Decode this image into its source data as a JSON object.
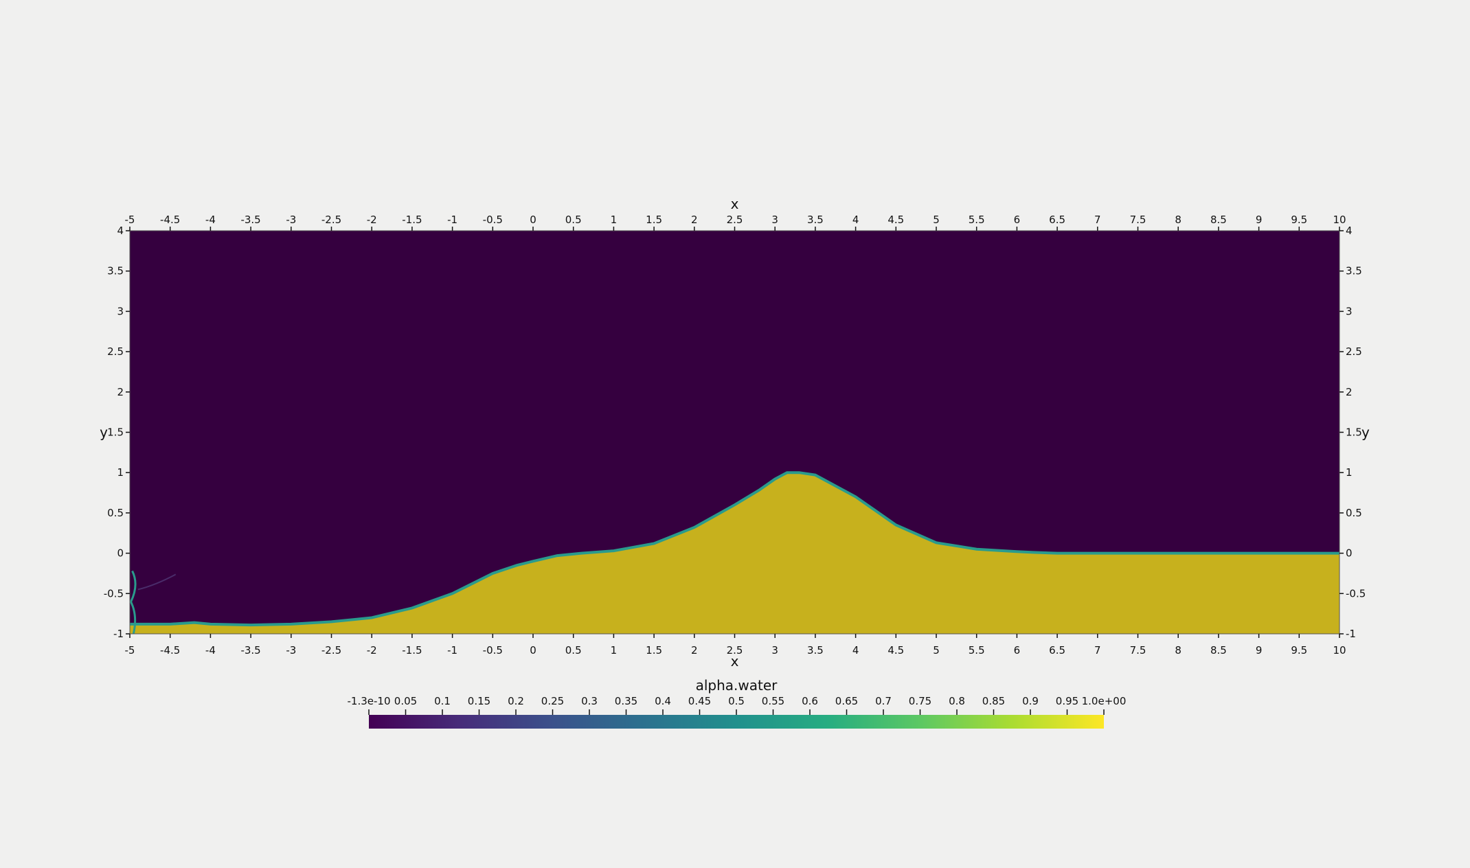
{
  "chart_data": {
    "type": "heatmap",
    "field": "alpha.water",
    "x_axis": {
      "label": "x",
      "range": [
        -5,
        10
      ],
      "ticks": [
        -5,
        -4.5,
        -4,
        -3.5,
        -3,
        -2.5,
        -2,
        -1.5,
        -1,
        -0.5,
        0,
        0.5,
        1,
        1.5,
        2,
        2.5,
        3,
        3.5,
        4,
        4.5,
        5,
        5.5,
        6,
        6.5,
        7,
        7.5,
        8,
        8.5,
        9,
        9.5,
        10
      ],
      "tick_labels": [
        "-5",
        "-4.5",
        "-4",
        "-3.5",
        "-3",
        "-2.5",
        "-2",
        "-1.5",
        "-1",
        "-0.5",
        "0",
        "0.5",
        "1",
        "1.5",
        "2",
        "2.5",
        "3",
        "3.5",
        "4",
        "4.5",
        "5",
        "5.5",
        "6",
        "6.5",
        "7",
        "7.5",
        "8",
        "8.5",
        "9",
        "9.5",
        "10"
      ]
    },
    "y_axis": {
      "label": "y",
      "range": [
        -1,
        4
      ],
      "ticks": [
        -1,
        -0.5,
        0,
        0.5,
        1,
        1.5,
        2,
        2.5,
        3,
        3.5,
        4
      ],
      "tick_labels": [
        "-1",
        "-0.5",
        "0",
        "0.5",
        "1",
        "1.5",
        "2",
        "2.5",
        "3",
        "3.5",
        "4"
      ]
    },
    "free_surface": {
      "x": [
        -5,
        -4.5,
        -4.2,
        -4,
        -3.5,
        -3,
        -2.5,
        -2,
        -1.5,
        -1,
        -0.8,
        -0.5,
        -0.2,
        0,
        0.3,
        0.6,
        1,
        1.5,
        2,
        2.5,
        2.8,
        3,
        3.15,
        3.3,
        3.5,
        4,
        4.5,
        5,
        5.5,
        6,
        6.2,
        6.5,
        7,
        8,
        9,
        10
      ],
      "y": [
        -0.88,
        -0.88,
        -0.86,
        -0.88,
        -0.89,
        -0.88,
        -0.85,
        -0.8,
        -0.68,
        -0.5,
        -0.4,
        -0.25,
        -0.15,
        -0.1,
        -0.03,
        0,
        0.03,
        0.12,
        0.32,
        0.6,
        0.78,
        0.92,
        1.0,
        1.0,
        0.97,
        0.7,
        0.35,
        0.13,
        0.05,
        0.02,
        0.01,
        0.0,
        0.0,
        0.0,
        0.0,
        0.0
      ]
    },
    "colorbar": {
      "title": "alpha.water",
      "range": [
        -1.3e-10,
        1.0
      ],
      "tick_values": [
        0,
        0.05,
        0.1,
        0.15,
        0.2,
        0.25,
        0.3,
        0.35,
        0.4,
        0.45,
        0.5,
        0.55,
        0.6,
        0.65,
        0.7,
        0.75,
        0.8,
        0.85,
        0.9,
        0.95,
        1.0
      ],
      "tick_labels": [
        "-1.3e-10",
        "0.05",
        "0.1",
        "0.15",
        "0.2",
        "0.25",
        "0.3",
        "0.35",
        "0.4",
        "0.45",
        "0.5",
        "0.55",
        "0.6",
        "0.65",
        "0.7",
        "0.75",
        "0.8",
        "0.85",
        "0.9",
        "0.95",
        "1.0e+00"
      ],
      "colormap": [
        "#440154",
        "#472c7a",
        "#3b518b",
        "#2c718e",
        "#21908d",
        "#27ad81",
        "#5cc863",
        "#aadc32",
        "#fde725"
      ]
    },
    "colors": {
      "air": "#35003f",
      "water": "#c7b11d",
      "interface": "#2a9b8c",
      "background": "#f0f0ef"
    }
  }
}
